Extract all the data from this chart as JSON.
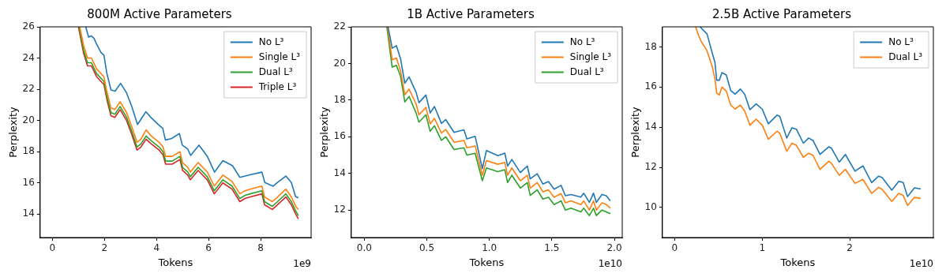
{
  "chart_data": [
    {
      "type": "line",
      "title": "800M Active Parameters",
      "xlabel": "Tokens",
      "ylabel": "Perplexity",
      "annotations": [
        "1e9"
      ],
      "xlim": [
        -0.47,
        9.94
      ],
      "ylim": [
        12.5,
        26
      ],
      "xticks": [
        0,
        2,
        4,
        6,
        8
      ],
      "yticks": [
        14,
        16,
        18,
        20,
        22,
        24,
        26
      ],
      "grid": false,
      "legend": "top right",
      "series": [
        {
          "name": "No L³",
          "color": "#1f77b4",
          "x": [
            1.28,
            1.39,
            1.49,
            1.6,
            1.71,
            1.87,
            1.98,
            2.09,
            2.25,
            2.41,
            2.62,
            2.84,
            3.05,
            3.27,
            3.43,
            3.59,
            3.81,
            4.07,
            4.24,
            4.34,
            4.56,
            4.88,
            4.99,
            5.2,
            5.31,
            5.63,
            5.96,
            6.23,
            6.55,
            6.92,
            7.2,
            7.41,
            7.62,
            8.05,
            8.16,
            8.48,
            8.65,
            8.97,
            9.18,
            9.34,
            9.45
          ],
          "values": [
            26,
            25.34,
            25.42,
            25.26,
            24.85,
            24.35,
            24.19,
            23.03,
            21.96,
            21.88,
            22.38,
            21.8,
            20.89,
            19.74,
            20.15,
            20.56,
            20.15,
            19.74,
            19.5,
            18.75,
            18.83,
            19.16,
            18.42,
            18.17,
            17.76,
            18.42,
            17.68,
            16.69,
            17.43,
            17.1,
            16.36,
            16.44,
            16.53,
            16.69,
            16.03,
            15.79,
            16.03,
            16.44,
            16.03,
            15.13,
            15.04
          ]
        },
        {
          "name": "Single L³",
          "color": "#ff7f0e",
          "x": [
            1.05,
            1.2,
            1.35,
            1.5,
            1.7,
            1.98,
            2.1,
            2.25,
            2.4,
            2.6,
            2.85,
            3.05,
            3.25,
            3.4,
            3.6,
            3.8,
            4.1,
            4.25,
            4.35,
            4.6,
            4.9,
            5.0,
            5.2,
            5.3,
            5.6,
            5.95,
            6.22,
            6.55,
            6.9,
            7.2,
            7.4,
            7.6,
            8.05,
            8.15,
            8.45,
            8.65,
            8.97,
            9.18,
            9.35,
            9.45
          ],
          "values": [
            26,
            24.8,
            24.0,
            24.0,
            23.3,
            22.8,
            21.8,
            20.8,
            20.7,
            21.2,
            20.5,
            19.6,
            18.6,
            18.8,
            19.4,
            19.0,
            18.6,
            18.3,
            17.7,
            17.7,
            18.0,
            17.3,
            17.0,
            16.7,
            17.3,
            16.7,
            15.8,
            16.5,
            16.1,
            15.3,
            15.5,
            15.6,
            15.8,
            15.1,
            14.8,
            15.1,
            15.6,
            15.1,
            14.5,
            14.3
          ]
        },
        {
          "name": "Dual L³",
          "color": "#2ca02c",
          "x": [
            1.02,
            1.2,
            1.35,
            1.5,
            1.7,
            1.98,
            2.1,
            2.25,
            2.4,
            2.6,
            2.85,
            3.05,
            3.25,
            3.4,
            3.6,
            3.8,
            4.1,
            4.25,
            4.35,
            4.6,
            4.9,
            5.0,
            5.2,
            5.3,
            5.6,
            5.95,
            6.22,
            6.55,
            6.9,
            7.2,
            7.4,
            7.6,
            8.05,
            8.15,
            8.45,
            8.65,
            8.97,
            9.18,
            9.35,
            9.45
          ],
          "values": [
            26,
            24.5,
            23.7,
            23.7,
            23.0,
            22.5,
            21.5,
            20.5,
            20.4,
            20.9,
            20.2,
            19.3,
            18.3,
            18.5,
            19.0,
            18.7,
            18.3,
            18.0,
            17.4,
            17.4,
            17.7,
            17.0,
            16.7,
            16.4,
            17.0,
            16.4,
            15.5,
            16.2,
            15.8,
            15.0,
            15.2,
            15.3,
            15.5,
            14.8,
            14.5,
            14.8,
            15.3,
            14.8,
            14.2,
            13.9
          ]
        },
        {
          "name": "Triple L³",
          "color": "#d62728",
          "x": [
            1.0,
            1.2,
            1.35,
            1.5,
            1.7,
            1.98,
            2.1,
            2.25,
            2.4,
            2.6,
            2.85,
            3.05,
            3.25,
            3.4,
            3.6,
            3.8,
            4.1,
            4.25,
            4.35,
            4.6,
            4.9,
            5.0,
            5.2,
            5.3,
            5.6,
            5.95,
            6.22,
            6.55,
            6.9,
            7.2,
            7.4,
            7.6,
            8.05,
            8.15,
            8.45,
            8.65,
            8.97,
            9.18,
            9.35,
            9.45
          ],
          "values": [
            26,
            24.3,
            23.5,
            23.5,
            22.8,
            22.3,
            21.3,
            20.3,
            20.2,
            20.7,
            20.0,
            19.1,
            18.1,
            18.3,
            18.8,
            18.5,
            18.1,
            17.8,
            17.2,
            17.2,
            17.5,
            16.8,
            16.5,
            16.2,
            16.8,
            16.2,
            15.3,
            16.0,
            15.6,
            14.8,
            15.0,
            15.1,
            15.3,
            14.6,
            14.3,
            14.6,
            15.1,
            14.6,
            14.0,
            13.7
          ]
        }
      ]
    },
    {
      "type": "line",
      "title": "1B Active Parameters",
      "xlabel": "Tokens",
      "ylabel": "Perplexity",
      "annotations": [
        "1e10"
      ],
      "xlim": [
        -0.104,
        2.063
      ],
      "ylim": [
        10.5,
        22
      ],
      "xticks": [
        {
          "value": 0,
          "label": "0.0"
        },
        0.5,
        {
          "value": 1,
          "label": "1.0"
        },
        1.5,
        {
          "value": 2,
          "label": "2.0"
        }
      ],
      "yticks": [
        12,
        14,
        16,
        18,
        20,
        22
      ],
      "grid": false,
      "legend": "top right",
      "series": [
        {
          "name": "No L³",
          "color": "#1f77b4",
          "x": [
            0.19,
            0.223,
            0.257,
            0.29,
            0.324,
            0.358,
            0.414,
            0.437,
            0.493,
            0.527,
            0.561,
            0.617,
            0.651,
            0.718,
            0.797,
            0.82,
            0.887,
            0.944,
            0.977,
            1.068,
            1.124,
            1.146,
            1.18,
            1.248,
            1.304,
            1.327,
            1.383,
            1.428,
            1.473,
            1.518,
            1.574,
            1.608,
            1.653,
            1.732,
            1.755,
            1.8,
            1.833,
            1.856,
            1.901,
            1.935,
            1.968
          ],
          "values": [
            22,
            20.83,
            20.97,
            20.26,
            18.92,
            19.27,
            18.43,
            17.86,
            18.28,
            17.3,
            17.65,
            16.73,
            16.94,
            16.24,
            16.38,
            15.88,
            16.02,
            14.26,
            15.25,
            14.97,
            15.11,
            14.4,
            14.76,
            14.05,
            14.4,
            13.7,
            13.98,
            13.42,
            13.56,
            13.14,
            13.35,
            12.78,
            12.85,
            12.71,
            12.92,
            12.42,
            12.92,
            12.42,
            12.85,
            12.78,
            12.5
          ]
        },
        {
          "name": "Single L³",
          "color": "#ff7f0e",
          "x": [
            0.185,
            0.223,
            0.257,
            0.29,
            0.324,
            0.358,
            0.414,
            0.437,
            0.493,
            0.527,
            0.561,
            0.617,
            0.651,
            0.718,
            0.797,
            0.82,
            0.887,
            0.944,
            0.977,
            1.068,
            1.124,
            1.146,
            1.18,
            1.248,
            1.304,
            1.327,
            1.383,
            1.428,
            1.473,
            1.518,
            1.574,
            1.608,
            1.653,
            1.732,
            1.755,
            1.8,
            1.833,
            1.856,
            1.901,
            1.935,
            1.968
          ],
          "values": [
            22,
            20.2,
            20.3,
            19.6,
            18.3,
            18.6,
            17.8,
            17.2,
            17.6,
            16.7,
            17.0,
            16.2,
            16.4,
            15.7,
            15.8,
            15.4,
            15.5,
            13.9,
            14.7,
            14.5,
            14.6,
            13.9,
            14.3,
            13.6,
            13.9,
            13.2,
            13.5,
            13.0,
            13.1,
            12.7,
            12.9,
            12.4,
            12.5,
            12.3,
            12.5,
            12.0,
            12.5,
            12.0,
            12.4,
            12.3,
            12.1
          ]
        },
        {
          "name": "Dual L³",
          "color": "#2ca02c",
          "x": [
            0.18,
            0.223,
            0.257,
            0.29,
            0.324,
            0.358,
            0.414,
            0.437,
            0.493,
            0.527,
            0.561,
            0.617,
            0.651,
            0.718,
            0.797,
            0.82,
            0.887,
            0.944,
            0.977,
            1.068,
            1.124,
            1.146,
            1.18,
            1.248,
            1.304,
            1.327,
            1.383,
            1.428,
            1.473,
            1.518,
            1.574,
            1.608,
            1.653,
            1.732,
            1.755,
            1.8,
            1.833,
            1.856,
            1.901,
            1.935,
            1.968
          ],
          "values": [
            22,
            19.8,
            19.9,
            19.3,
            17.9,
            18.2,
            17.3,
            16.8,
            17.2,
            16.3,
            16.6,
            15.8,
            16.0,
            15.3,
            15.4,
            15.0,
            15.1,
            13.6,
            14.3,
            14.1,
            14.2,
            13.5,
            13.9,
            13.2,
            13.5,
            12.8,
            13.1,
            12.6,
            12.7,
            12.3,
            12.5,
            12.0,
            12.1,
            11.9,
            12.1,
            11.7,
            12.1,
            11.7,
            12.0,
            11.9,
            11.8
          ]
        }
      ]
    },
    {
      "type": "line",
      "title": "2.5B Active Parameters",
      "xlabel": "Tokens",
      "ylabel": "Perplexity",
      "annotations": [
        "1e10"
      ],
      "xlim": [
        -0.14,
        2.955
      ],
      "ylim": [
        8.5,
        19
      ],
      "xticks": [
        0,
        1,
        2
      ],
      "yticks": [
        10,
        12,
        14,
        16,
        18
      ],
      "grid": false,
      "legend": "top right",
      "series": [
        {
          "name": "No L³",
          "color": "#1f77b4",
          "x": [
            0.29,
            0.37,
            0.43,
            0.46,
            0.48,
            0.51,
            0.54,
            0.59,
            0.64,
            0.69,
            0.75,
            0.8,
            0.86,
            0.93,
            1.0,
            1.07,
            1.17,
            1.2,
            1.28,
            1.34,
            1.39,
            1.47,
            1.53,
            1.58,
            1.66,
            1.76,
            1.79,
            1.88,
            1.95,
            2.06,
            2.15,
            2.25,
            2.33,
            2.37,
            2.48,
            2.56,
            2.61,
            2.66,
            2.74,
            2.81
          ],
          "values": [
            19,
            18.64,
            17.68,
            17.23,
            16.34,
            16.34,
            16.72,
            16.6,
            15.83,
            15.64,
            15.9,
            15.64,
            14.87,
            15.16,
            14.9,
            14.17,
            14.6,
            14.55,
            13.46,
            13.97,
            13.9,
            13.2,
            13.46,
            13.34,
            12.64,
            13.02,
            12.96,
            12.26,
            12.64,
            11.81,
            12.07,
            11.24,
            11.56,
            11.49,
            10.86,
            11.3,
            11.24,
            10.54,
            10.98,
            10.92
          ]
        },
        {
          "name": "Dual L³",
          "color": "#ff7f0e",
          "x": [
            0.24,
            0.27,
            0.3,
            0.37,
            0.43,
            0.46,
            0.48,
            0.51,
            0.54,
            0.59,
            0.64,
            0.69,
            0.75,
            0.8,
            0.86,
            0.93,
            1.0,
            1.07,
            1.17,
            1.2,
            1.28,
            1.34,
            1.39,
            1.47,
            1.53,
            1.58,
            1.66,
            1.76,
            1.79,
            1.88,
            1.95,
            2.06,
            2.15,
            2.25,
            2.33,
            2.37,
            2.48,
            2.56,
            2.61,
            2.66,
            2.74,
            2.81
          ],
          "values": [
            19,
            18.6,
            18.3,
            17.8,
            17.0,
            16.4,
            15.7,
            15.6,
            16.0,
            15.8,
            15.1,
            14.9,
            15.1,
            14.8,
            14.1,
            14.4,
            14.1,
            13.4,
            13.8,
            13.7,
            12.8,
            13.2,
            13.1,
            12.5,
            12.7,
            12.6,
            11.9,
            12.3,
            12.2,
            11.6,
            11.9,
            11.2,
            11.4,
            10.7,
            11.0,
            10.9,
            10.3,
            10.7,
            10.6,
            10.1,
            10.5,
            10.45
          ]
        }
      ]
    }
  ]
}
